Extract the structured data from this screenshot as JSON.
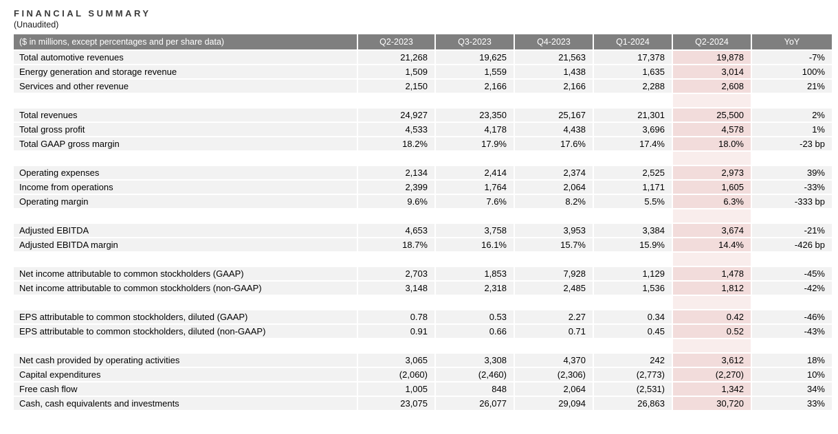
{
  "page": {
    "title": "FINANCIAL SUMMARY",
    "subtitle": "(Unaudited)"
  },
  "table": {
    "header": {
      "label": "($ in millions, except percentages and per share data)",
      "columns": [
        "Q2-2023",
        "Q3-2023",
        "Q4-2023",
        "Q1-2024",
        "Q2-2024",
        "YoY"
      ]
    },
    "highlight_column": "Q2-2024",
    "colors": {
      "header_bg": "#7f7f7f",
      "header_text": "#ffffff",
      "row_bg": "#f2f2f2",
      "highlight_bg": "#f2dcdb",
      "highlight_spacer_bg": "#f9edec"
    },
    "sections": [
      {
        "rows": [
          {
            "label": "Total automotive revenues",
            "values": [
              "21,268",
              "19,625",
              "21,563",
              "17,378",
              "19,878",
              "-7%"
            ]
          },
          {
            "label": "Energy generation and storage revenue",
            "values": [
              "1,509",
              "1,559",
              "1,438",
              "1,635",
              "3,014",
              "100%"
            ]
          },
          {
            "label": "Services and other revenue",
            "values": [
              "2,150",
              "2,166",
              "2,166",
              "2,288",
              "2,608",
              "21%"
            ]
          }
        ]
      },
      {
        "rows": [
          {
            "label": "Total revenues",
            "values": [
              "24,927",
              "23,350",
              "25,167",
              "21,301",
              "25,500",
              "2%"
            ]
          },
          {
            "label": "Total gross profit",
            "values": [
              "4,533",
              "4,178",
              "4,438",
              "3,696",
              "4,578",
              "1%"
            ]
          },
          {
            "label": "Total GAAP gross margin",
            "values": [
              "18.2%",
              "17.9%",
              "17.6%",
              "17.4%",
              "18.0%",
              "-23 bp"
            ]
          }
        ]
      },
      {
        "rows": [
          {
            "label": "Operating expenses",
            "values": [
              "2,134",
              "2,414",
              "2,374",
              "2,525",
              "2,973",
              "39%"
            ]
          },
          {
            "label": "Income from operations",
            "values": [
              "2,399",
              "1,764",
              "2,064",
              "1,171",
              "1,605",
              "-33%"
            ]
          },
          {
            "label": "Operating margin",
            "values": [
              "9.6%",
              "7.6%",
              "8.2%",
              "5.5%",
              "6.3%",
              "-333 bp"
            ]
          }
        ]
      },
      {
        "rows": [
          {
            "label": "Adjusted EBITDA",
            "values": [
              "4,653",
              "3,758",
              "3,953",
              "3,384",
              "3,674",
              "-21%"
            ]
          },
          {
            "label": "Adjusted EBITDA margin",
            "values": [
              "18.7%",
              "16.1%",
              "15.7%",
              "15.9%",
              "14.4%",
              "-426 bp"
            ]
          }
        ]
      },
      {
        "rows": [
          {
            "label": "Net income attributable to common stockholders (GAAP)",
            "values": [
              "2,703",
              "1,853",
              "7,928",
              "1,129",
              "1,478",
              "-45%"
            ]
          },
          {
            "label": "Net income attributable to common stockholders (non-GAAP)",
            "values": [
              "3,148",
              "2,318",
              "2,485",
              "1,536",
              "1,812",
              "-42%"
            ]
          }
        ]
      },
      {
        "rows": [
          {
            "label": "EPS attributable to common stockholders, diluted (GAAP)",
            "values": [
              "0.78",
              "0.53",
              "2.27",
              "0.34",
              "0.42",
              "-46%"
            ]
          },
          {
            "label": "EPS attributable to common stockholders, diluted (non-GAAP)",
            "values": [
              "0.91",
              "0.66",
              "0.71",
              "0.45",
              "0.52",
              "-43%"
            ]
          }
        ]
      },
      {
        "rows": [
          {
            "label": "Net cash provided by operating activities",
            "values": [
              "3,065",
              "3,308",
              "4,370",
              "242",
              "3,612",
              "18%"
            ]
          },
          {
            "label": "Capital expenditures",
            "values": [
              "(2,060)",
              "(2,460)",
              "(2,306)",
              "(2,773)",
              "(2,270)",
              "10%"
            ]
          },
          {
            "label": "Free cash flow",
            "values": [
              "1,005",
              "848",
              "2,064",
              "(2,531)",
              "1,342",
              "34%"
            ]
          },
          {
            "label": "Cash, cash equivalents and investments",
            "values": [
              "23,075",
              "26,077",
              "29,094",
              "26,863",
              "30,720",
              "33%"
            ]
          }
        ]
      }
    ]
  }
}
